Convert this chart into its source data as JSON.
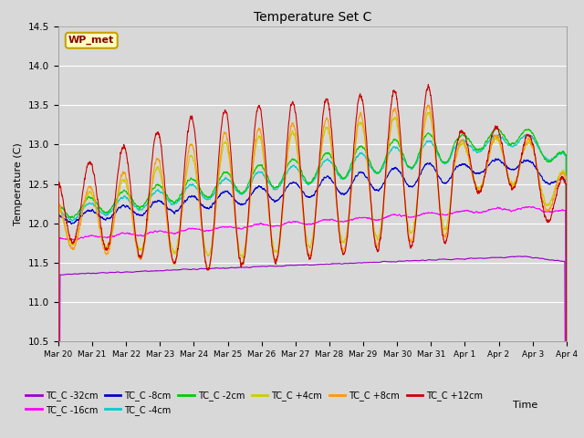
{
  "title": "Temperature Set C",
  "xlabel": "Time",
  "ylabel": "Temperature (C)",
  "ylim": [
    10.5,
    14.5
  ],
  "xlim": [
    0,
    360
  ],
  "background_color": "#d8d8d8",
  "plot_bg_color": "#d8d8d8",
  "wp_met_label": "WP_met",
  "wp_met_bg": "#ffffc0",
  "wp_met_edge": "#c8a000",
  "series": [
    {
      "label": "TC_C -32cm",
      "color": "#9900cc"
    },
    {
      "label": "TC_C -16cm",
      "color": "#ff00ff"
    },
    {
      "label": "TC_C -8cm",
      "color": "#0000cc"
    },
    {
      "label": "TC_C -4cm",
      "color": "#00cccc"
    },
    {
      "label": "TC_C -2cm",
      "color": "#00cc00"
    },
    {
      "label": "TC_C +4cm",
      "color": "#cccc00"
    },
    {
      "label": "TC_C +8cm",
      "color": "#ff9900"
    },
    {
      "label": "TC_C +12cm",
      "color": "#cc0000"
    }
  ],
  "xtick_labels": [
    "Mar 20",
    "Mar 21",
    "Mar 22",
    "Mar 23",
    "Mar 24",
    "Mar 25",
    "Mar 26",
    "Mar 27",
    "Mar 28",
    "Mar 29",
    "Mar 30",
    "Mar 31",
    "Apr 1",
    "Apr 2",
    "Apr 3",
    "Apr 4"
  ],
  "xtick_positions": [
    0,
    24,
    48,
    72,
    96,
    120,
    144,
    168,
    192,
    216,
    240,
    264,
    288,
    312,
    336,
    360
  ]
}
